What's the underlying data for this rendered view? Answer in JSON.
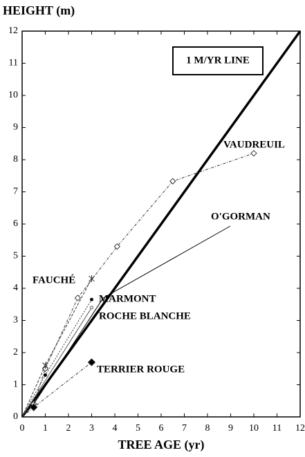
{
  "chart_data": {
    "type": "line",
    "y_label": "HEIGHT (m)",
    "x_label": "TREE AGE (yr)",
    "xlim": [
      0,
      12
    ],
    "ylim": [
      0,
      12
    ],
    "xticks": [
      0,
      1,
      2,
      3,
      4,
      5,
      6,
      7,
      8,
      9,
      10,
      11,
      12
    ],
    "yticks": [
      0,
      1,
      2,
      3,
      4,
      5,
      6,
      7,
      8,
      9,
      10,
      11,
      12
    ],
    "series": [
      {
        "name": "1 M/YR LINE",
        "color": "#000000",
        "width": 3.5,
        "dash": "none",
        "marker": "none",
        "x": [
          0,
          12
        ],
        "values": [
          0,
          12
        ]
      },
      {
        "name": "VAUDREUIL",
        "color": "#333333",
        "width": 1,
        "dash": "4 2 1 2",
        "marker": "open-diamond",
        "x": [
          0,
          0.5,
          1,
          2.4,
          4.1,
          6.5,
          10
        ],
        "values": [
          0,
          0.4,
          1.5,
          3.7,
          5.3,
          7.33,
          8.2
        ]
      },
      {
        "name": "FAUCHÉ",
        "color": "#333333",
        "width": 1,
        "dash": "4 2",
        "marker": "cross",
        "x": [
          0,
          1,
          3
        ],
        "values": [
          0,
          1.6,
          4.3
        ]
      },
      {
        "name": "MARMONT",
        "color": "#333333",
        "width": 1,
        "dash": "2 2",
        "marker": "dot",
        "x": [
          0,
          1,
          3
        ],
        "values": [
          0,
          1.3,
          3.65
        ]
      },
      {
        "name": "ROCHE BLANCHE",
        "color": "#555555",
        "width": 1,
        "dash": "none",
        "marker": "small-circle",
        "x": [
          0,
          3
        ],
        "values": [
          0,
          3.4
        ]
      },
      {
        "name": "O'GORMAN",
        "color": "#000000",
        "width": 1,
        "dash": "none",
        "marker": "none",
        "x": [
          0,
          0.5,
          3.5
        ],
        "values": [
          0,
          0.4,
          3.7
        ]
      },
      {
        "name": "TERRIER ROUGE",
        "color": "#333333",
        "width": 1,
        "dash": "4 2 1 2",
        "marker": "filled-diamond",
        "x": [
          0,
          0.5,
          3
        ],
        "values": [
          0,
          0.3,
          1.7
        ]
      }
    ]
  }
}
